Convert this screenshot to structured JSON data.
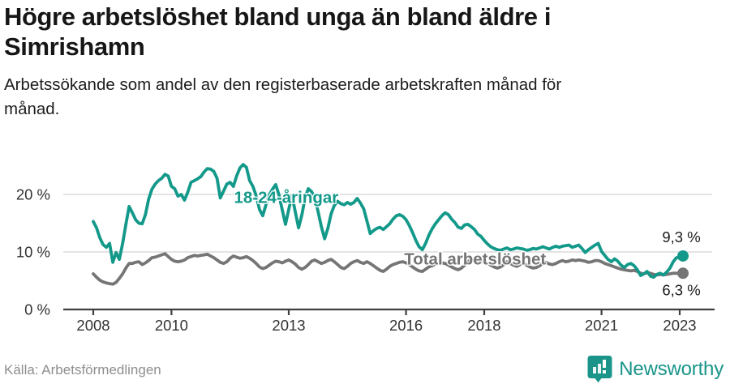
{
  "header": {
    "title": "Högre arbetslöshet bland unga än bland äldre i\nSimrishamn",
    "subtitle": "Arbetssökande som andel av den registerbaserade arbetskraften månad för\nmånad."
  },
  "footer": {
    "source": "Källa: Arbetsförmedlingen",
    "brand_name": "Newsworthy",
    "brand_icon": "bar-chart-badge-icon"
  },
  "colors": {
    "youth_line": "#13998a",
    "total_line": "#757575",
    "grid": "#dcdcdc",
    "axis": "#3f3f3f",
    "tick_text": "#333333",
    "value_text": "#1b1b1b",
    "muted_text": "#8e8e8e",
    "brand_teal": "#1b958a"
  },
  "chart_data": {
    "type": "line",
    "title": "Högre arbetslöshet bland unga än bland äldre i Simrishamn",
    "subtitle": "Arbetssökande som andel av den registerbaserade arbetskraften månad för månad.",
    "xlabel": "",
    "ylabel": "",
    "x_unit": "month",
    "x_start": "2008-01",
    "x_end": "2023-02",
    "grid": "horizontal",
    "legend_position": "inline-labels",
    "ylim": [
      0,
      27
    ],
    "y_ticks": [
      {
        "value": 0,
        "label": "0 %"
      },
      {
        "value": 10,
        "label": "10 %"
      },
      {
        "value": 20,
        "label": "20 %"
      }
    ],
    "x_ticks": [
      2008,
      2010,
      2013,
      2016,
      2018,
      2021,
      2023
    ],
    "series": [
      {
        "name": "Total arbetslöshet",
        "color": "#757575",
        "end_label": "6,3 %",
        "end_label_dy": 27,
        "label_x": 2015.95,
        "label_y": 7.85,
        "values": [
          6.2,
          5.6,
          5.1,
          4.8,
          4.6,
          4.5,
          4.4,
          4.7,
          5.4,
          6.2,
          7.2,
          8.0,
          8.0,
          8.2,
          8.3,
          7.8,
          8.1,
          8.5,
          9.0,
          9.1,
          9.3,
          9.5,
          9.7,
          9.2,
          8.7,
          8.4,
          8.3,
          8.4,
          8.6,
          9.0,
          9.2,
          9.4,
          9.3,
          9.4,
          9.5,
          9.6,
          9.3,
          9.0,
          8.6,
          8.2,
          8.0,
          8.3,
          8.9,
          9.3,
          9.1,
          8.9,
          9.0,
          9.2,
          8.9,
          8.5,
          8.0,
          7.4,
          7.1,
          7.3,
          7.7,
          8.1,
          8.4,
          8.3,
          8.1,
          8.4,
          8.6,
          8.3,
          7.9,
          7.3,
          7.0,
          7.3,
          7.8,
          8.4,
          8.6,
          8.3,
          8.0,
          8.2,
          8.5,
          8.7,
          8.3,
          7.8,
          7.3,
          7.1,
          7.5,
          8.0,
          8.3,
          8.5,
          8.2,
          8.0,
          8.3,
          8.0,
          7.6,
          7.2,
          6.8,
          6.6,
          7.0,
          7.5,
          7.8,
          8.0,
          8.2,
          8.3,
          8.1,
          7.8,
          7.4,
          7.0,
          6.7,
          6.6,
          7.0,
          7.4,
          7.6,
          7.9,
          8.0,
          8.1,
          8.0,
          7.7,
          7.4,
          7.1,
          6.9,
          7.2,
          7.7,
          8.3,
          8.7,
          8.5,
          8.3,
          8.4,
          8.3,
          8.0,
          7.7,
          7.4,
          7.2,
          7.4,
          7.8,
          8.3,
          8.0,
          7.7,
          7.5,
          7.8,
          8.0,
          7.7,
          7.4,
          7.2,
          7.3,
          7.6,
          8.0,
          8.2,
          7.9,
          7.8,
          8.0,
          8.3,
          8.5,
          8.3,
          8.4,
          8.6,
          8.5,
          8.6,
          8.5,
          8.4,
          8.2,
          8.3,
          8.5,
          8.5,
          8.3,
          8.0,
          7.8,
          7.6,
          7.4,
          7.2,
          7.0,
          6.9,
          6.8,
          6.7,
          6.8,
          6.6,
          6.3,
          6.2,
          6.4,
          6.3,
          6.1,
          6.0,
          6.1,
          6.0,
          6.1,
          6.2,
          6.3,
          6.3,
          6.2,
          6.3
        ]
      },
      {
        "name": "18-24-åringar",
        "color": "#13998a",
        "end_label": "9,3 %",
        "end_label_dy": -17,
        "label_x": 2011.6,
        "label_y": 18.55,
        "values": [
          15.3,
          14.2,
          12.5,
          11.3,
          10.8,
          11.5,
          8.2,
          9.9,
          8.7,
          11.5,
          14.8,
          17.9,
          16.8,
          15.6,
          15.0,
          14.9,
          16.5,
          19.2,
          20.9,
          21.8,
          22.4,
          22.8,
          23.5,
          23.2,
          21.4,
          21.0,
          19.7,
          20.0,
          19.0,
          20.4,
          22.1,
          22.4,
          22.7,
          23.1,
          23.9,
          24.5,
          24.4,
          24.0,
          22.8,
          19.4,
          20.6,
          21.8,
          22.1,
          21.4,
          23.2,
          24.6,
          25.2,
          24.7,
          22.4,
          21.4,
          19.8,
          17.4,
          16.3,
          18.2,
          19.9,
          20.9,
          21.7,
          19.9,
          17.3,
          14.8,
          17.4,
          19.8,
          17.0,
          14.2,
          16.4,
          19.4,
          21.0,
          20.5,
          19.4,
          17.0,
          14.4,
          12.3,
          14.1,
          16.6,
          18.1,
          18.8,
          18.4,
          18.2,
          18.6,
          18.3,
          18.6,
          19.3,
          18.5,
          17.5,
          15.4,
          13.2,
          13.7,
          14.1,
          14.3,
          13.9,
          14.4,
          14.9,
          15.7,
          16.3,
          16.5,
          16.2,
          15.6,
          14.6,
          13.4,
          12.0,
          10.9,
          10.4,
          11.5,
          12.9,
          14.0,
          14.9,
          15.6,
          16.3,
          16.8,
          16.5,
          15.7,
          15.1,
          14.3,
          14.1,
          14.7,
          14.8,
          14.4,
          13.9,
          13.1,
          12.7,
          12.0,
          11.4,
          10.9,
          10.6,
          10.4,
          10.3,
          10.5,
          10.7,
          10.4,
          10.5,
          10.7,
          10.6,
          10.5,
          10.3,
          10.4,
          10.6,
          10.5,
          10.7,
          10.9,
          10.7,
          10.5,
          10.8,
          11.0,
          10.8,
          11.0,
          11.1,
          11.2,
          10.8,
          11.0,
          11.2,
          10.6,
          9.9,
          10.4,
          10.8,
          11.2,
          11.5,
          10.1,
          9.4,
          8.7,
          8.3,
          8.8,
          8.4,
          7.7,
          7.3,
          7.8,
          8.0,
          7.6,
          6.9,
          5.9,
          6.2,
          6.6,
          5.8,
          5.6,
          6.1,
          6.3,
          6.0,
          6.5,
          7.2,
          8.3,
          9.0,
          9.1,
          9.3
        ]
      }
    ]
  }
}
